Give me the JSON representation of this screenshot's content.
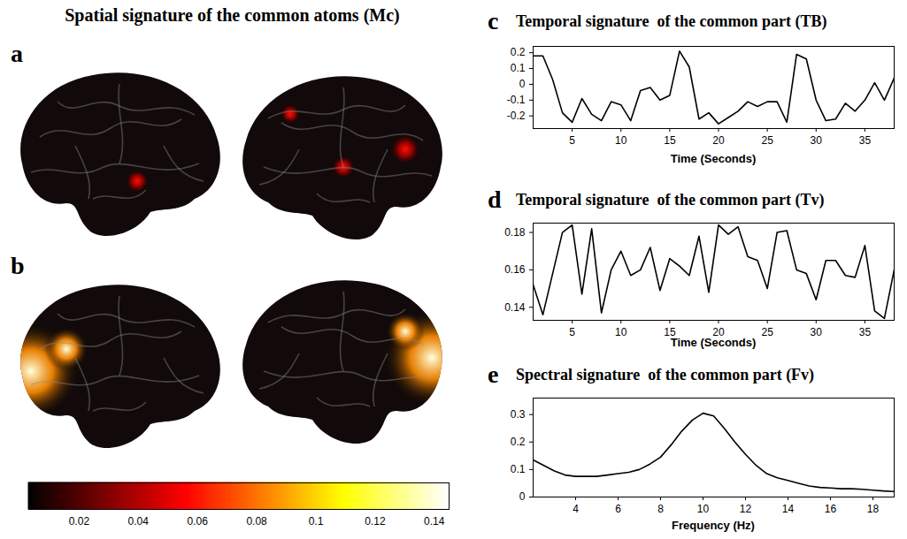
{
  "title": "Spatial signature of the common atoms (Mc)",
  "chart_data": [
    {
      "panel": "a",
      "type": "surface",
      "peak": 0.06
    },
    {
      "panel": "b",
      "type": "surface",
      "peak": 0.14
    },
    {
      "type": "colorbar",
      "xlim": [
        0.003,
        0.145
      ],
      "xticks": [
        0.02,
        0.04,
        0.06,
        0.08,
        0.1,
        0.12,
        0.14
      ]
    },
    {
      "panel": "c",
      "type": "line",
      "title": "Temporal signature  of the common part (TB)",
      "x_label": "Time (Seconds)",
      "x": [
        1,
        2,
        3,
        4,
        5,
        6,
        7,
        8,
        9,
        10,
        11,
        12,
        13,
        14,
        15,
        16,
        17,
        18,
        19,
        20,
        21,
        22,
        23,
        24,
        25,
        26,
        27,
        28,
        29,
        30,
        31,
        32,
        33,
        34,
        35,
        36,
        37,
        38
      ],
      "values": [
        0.18,
        0.18,
        0.03,
        -0.18,
        -0.24,
        -0.09,
        -0.19,
        -0.23,
        -0.11,
        -0.13,
        -0.23,
        -0.04,
        -0.02,
        -0.1,
        -0.07,
        0.21,
        0.11,
        -0.22,
        -0.18,
        -0.25,
        -0.21,
        -0.17,
        -0.11,
        -0.14,
        -0.11,
        -0.11,
        -0.24,
        0.19,
        0.16,
        -0.1,
        -0.23,
        -0.22,
        -0.12,
        -0.17,
        -0.1,
        0.01,
        -0.1,
        0.04
      ],
      "color": "#000000",
      "xlim": [
        1,
        38
      ],
      "xticks": [
        5,
        10,
        15,
        20,
        25,
        30,
        35
      ],
      "ylim": [
        -0.28,
        0.24
      ],
      "yticks": [
        -0.2,
        -0.1,
        0,
        0.1,
        0.2
      ]
    },
    {
      "panel": "d",
      "type": "line",
      "title": "Temporal signature  of the common part (Tv)",
      "x_label": "Time (Seconds)",
      "x": [
        1,
        2,
        3,
        4,
        5,
        6,
        7,
        8,
        9,
        10,
        11,
        12,
        13,
        14,
        15,
        16,
        17,
        18,
        19,
        20,
        21,
        22,
        23,
        24,
        25,
        26,
        27,
        28,
        29,
        30,
        31,
        32,
        33,
        34,
        35,
        36,
        37,
        38
      ],
      "values": [
        0.152,
        0.136,
        0.158,
        0.18,
        0.184,
        0.147,
        0.182,
        0.137,
        0.16,
        0.17,
        0.157,
        0.16,
        0.172,
        0.149,
        0.166,
        0.162,
        0.157,
        0.178,
        0.148,
        0.184,
        0.179,
        0.183,
        0.167,
        0.165,
        0.15,
        0.18,
        0.181,
        0.16,
        0.158,
        0.144,
        0.165,
        0.165,
        0.157,
        0.156,
        0.173,
        0.138,
        0.134,
        0.16
      ],
      "color": "#000000",
      "xlim": [
        1,
        38
      ],
      "xticks": [
        5,
        10,
        15,
        20,
        25,
        30,
        35
      ],
      "ylim": [
        0.133,
        0.185
      ],
      "yticks": [
        0.14,
        0.16,
        0.18
      ]
    },
    {
      "panel": "e",
      "type": "line",
      "title": "Spectral signature  of the common part (Fv)",
      "x_label": "Frequency (Hz)",
      "x": [
        2,
        2.5,
        3,
        3.5,
        4,
        4.5,
        5,
        5.5,
        6,
        6.5,
        7,
        7.5,
        8,
        8.5,
        9,
        9.5,
        10,
        10.5,
        11,
        11.5,
        12,
        12.5,
        13,
        13.5,
        14,
        14.5,
        15,
        15.5,
        16,
        16.5,
        17,
        17.5,
        18,
        18.5,
        19
      ],
      "values": [
        0.135,
        0.115,
        0.095,
        0.08,
        0.075,
        0.075,
        0.075,
        0.08,
        0.085,
        0.09,
        0.1,
        0.12,
        0.145,
        0.19,
        0.24,
        0.28,
        0.305,
        0.295,
        0.25,
        0.2,
        0.155,
        0.115,
        0.085,
        0.07,
        0.06,
        0.05,
        0.04,
        0.035,
        0.033,
        0.03,
        0.03,
        0.028,
        0.025,
        0.022,
        0.02
      ],
      "color": "#000000",
      "xlim": [
        2,
        19
      ],
      "xticks": [
        4,
        6,
        8,
        10,
        12,
        14,
        16,
        18
      ],
      "ylim": [
        0,
        0.36
      ],
      "yticks": [
        0,
        0.1,
        0.2,
        0.3
      ]
    }
  ]
}
